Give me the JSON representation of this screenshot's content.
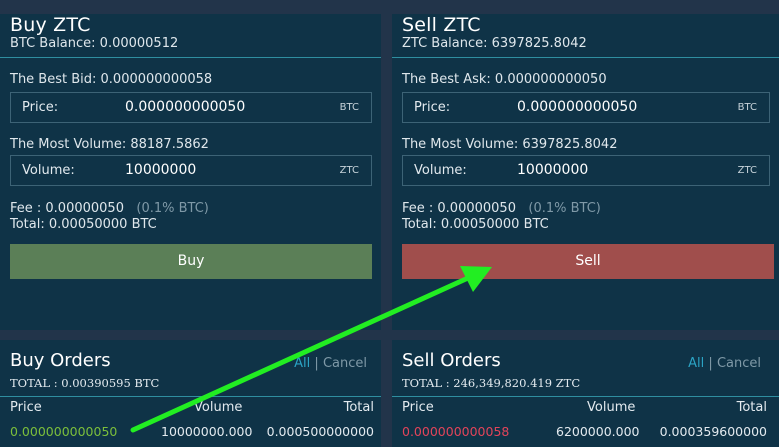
{
  "buy": {
    "title": "Buy ZTC",
    "balance": "BTC Balance: 0.00000512",
    "best_label": "The Best Bid: 0.000000000058",
    "price_label": "Price:",
    "price_value": "0.000000000050",
    "price_unit": "BTC",
    "most_volume": "The Most Volume: 88187.5862",
    "volume_label": "Volume:",
    "volume_value": "10000000",
    "volume_unit": "ZTC",
    "fee": "Fee : 0.00000050",
    "fee_pct": "(0.1% BTC)",
    "total": "Total: 0.00050000 BTC",
    "button": "Buy"
  },
  "sell": {
    "title": "Sell ZTC",
    "balance": "ZTC Balance: 6397825.8042",
    "best_label": "The Best Ask: 0.000000000050",
    "price_label": "Price:",
    "price_value": "0.000000000050",
    "price_unit": "BTC",
    "most_volume": "The Most Volume: 6397825.8042",
    "volume_label": "Volume:",
    "volume_value": "10000000",
    "volume_unit": "ZTC",
    "fee": "Fee : 0.00000050",
    "fee_pct": "(0.1% BTC)",
    "total": "Total: 0.00050000 BTC",
    "button": "Sell"
  },
  "buy_orders": {
    "title": "Buy Orders",
    "link_all": "All",
    "separator": "|",
    "link_cancel": "Cancel",
    "total": "TOTAL :  0.00390595 BTC",
    "columns": [
      "Price",
      "Volume",
      "Total"
    ],
    "rows": [
      {
        "price": "0.000000000050",
        "volume": "10000000.000",
        "total": "0.000500000000"
      }
    ]
  },
  "sell_orders": {
    "title": "Sell Orders",
    "link_all": "All",
    "separator": "|",
    "link_cancel": "Cancel",
    "total": "TOTAL :  246,349,820.419 ZTC",
    "columns": [
      "Price",
      "Volume",
      "Total"
    ],
    "rows": [
      {
        "price": "0.000000000058",
        "volume": "6200000.000",
        "total": "0.000359600000"
      }
    ]
  },
  "colors": {
    "background": "#22344a",
    "panel": "#0f3347",
    "buy_button": "#5b7f57",
    "sell_button": "#a04e4c",
    "accent": "#2ba3c4",
    "buy_price": "#7cbf3b",
    "sell_price": "#e2445a",
    "annotation_arrow": "#22ee22"
  }
}
